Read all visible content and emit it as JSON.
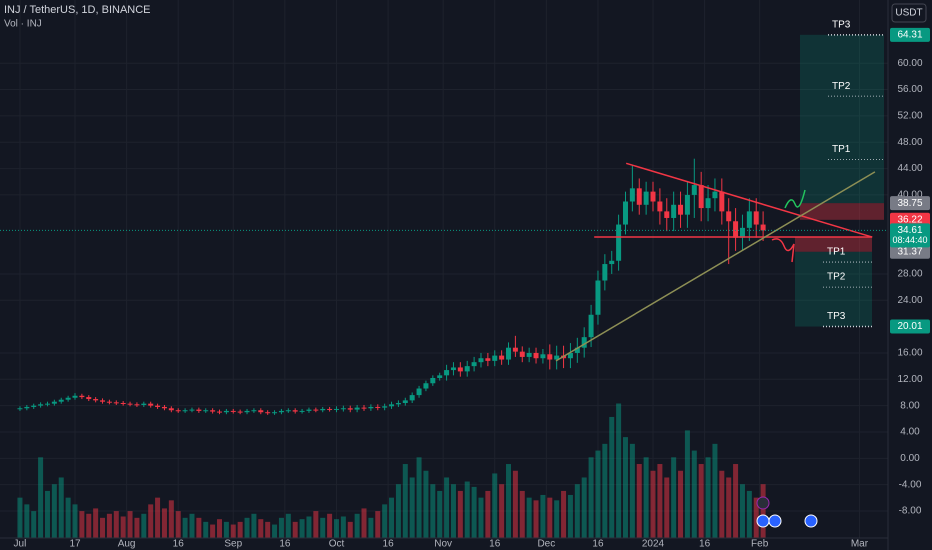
{
  "chart_data": {
    "type": "candlestick",
    "title": "INJ / TetherUS, 1D, BINANCE",
    "subtitle": "Vol · INJ",
    "currency": "USDT",
    "countdown": "08:44:40",
    "up_color": "#089981",
    "down_color": "#f23645",
    "grid": true,
    "xlim": [
      -5.8,
      252.3
    ],
    "ylim": [
      -12.1,
      69.6
    ],
    "volume_ylim": [
      0,
      400
    ],
    "xticks": [
      {
        "value": 0,
        "label": "Jul"
      },
      {
        "value": 16,
        "label": "17"
      },
      {
        "value": 31,
        "label": "Aug"
      },
      {
        "value": 46,
        "label": "16"
      },
      {
        "value": 62,
        "label": "Sep"
      },
      {
        "value": 77,
        "label": "16"
      },
      {
        "value": 92,
        "label": "Oct"
      },
      {
        "value": 107,
        "label": "16"
      },
      {
        "value": 123,
        "label": "Nov"
      },
      {
        "value": 138,
        "label": "16"
      },
      {
        "value": 153,
        "label": "Dec"
      },
      {
        "value": 168,
        "label": "16"
      },
      {
        "value": 184,
        "label": "2024"
      },
      {
        "value": 199,
        "label": "16"
      },
      {
        "value": 215,
        "label": "Feb"
      },
      {
        "value": 244,
        "label": "Mar"
      }
    ],
    "yticks": [
      {
        "value": 60,
        "label": "60.00"
      },
      {
        "value": 56,
        "label": "56.00"
      },
      {
        "value": 52,
        "label": "52.00"
      },
      {
        "value": 48,
        "label": "48.00"
      },
      {
        "value": 44,
        "label": "44.00"
      },
      {
        "value": 40,
        "label": "40.00"
      },
      {
        "value": 28,
        "label": "28.00"
      },
      {
        "value": 24,
        "label": "24.00"
      },
      {
        "value": 16,
        "label": "16.00"
      },
      {
        "value": 12,
        "label": "12.00"
      },
      {
        "value": 8,
        "label": "8.00"
      },
      {
        "value": 4,
        "label": "4.00"
      },
      {
        "value": 0,
        "label": "0.00"
      },
      {
        "value": -4,
        "label": "-4.00"
      },
      {
        "value": -8,
        "label": "-8.00"
      }
    ],
    "x": [
      0,
      2,
      4,
      6,
      8,
      10,
      12,
      14,
      16,
      18,
      20,
      22,
      24,
      26,
      28,
      30,
      32,
      34,
      36,
      38,
      40,
      42,
      44,
      46,
      48,
      50,
      52,
      54,
      56,
      58,
      60,
      62,
      64,
      66,
      68,
      70,
      72,
      74,
      76,
      78,
      80,
      82,
      84,
      86,
      88,
      90,
      92,
      94,
      96,
      98,
      100,
      102,
      104,
      106,
      108,
      110,
      112,
      114,
      116,
      118,
      120,
      122,
      124,
      126,
      128,
      130,
      132,
      134,
      136,
      138,
      140,
      142,
      144,
      146,
      148,
      150,
      152,
      154,
      156,
      158,
      160,
      162,
      164,
      166,
      168,
      170,
      172,
      174,
      176,
      178,
      180,
      182,
      184,
      186,
      188,
      190,
      192,
      194,
      196,
      198,
      200,
      202,
      204,
      206,
      208,
      210,
      212,
      214,
      216
    ],
    "open": [
      7.5,
      7.6,
      7.8,
      8.0,
      8.2,
      8.3,
      8.6,
      8.9,
      9.2,
      9.5,
      9.3,
      9.0,
      8.8,
      8.6,
      8.5,
      8.4,
      8.3,
      8.2,
      8.1,
      8.3,
      8.0,
      7.8,
      7.6,
      7.3,
      7.2,
      7.3,
      7.4,
      7.2,
      7.3,
      7.1,
      7.0,
      7.2,
      7.1,
      7.0,
      7.2,
      7.3,
      7.0,
      6.9,
      7.0,
      7.2,
      7.3,
      7.1,
      7.2,
      7.4,
      7.3,
      7.5,
      7.4,
      7.5,
      7.6,
      7.4,
      7.7,
      7.6,
      7.8,
      7.7,
      7.9,
      8.2,
      8.4,
      8.8,
      9.6,
      10.6,
      11.4,
      12.2,
      12.6,
      13.4,
      13.8,
      13.2,
      14.0,
      14.6,
      15.2,
      14.8,
      15.6,
      15.0,
      16.8,
      16.2,
      15.4,
      16.0,
      15.2,
      15.8,
      15.0,
      15.6,
      15.2,
      16.0,
      16.8,
      18.4,
      21.8,
      27.0,
      29.5,
      30.0,
      35.5,
      39.0,
      41.0,
      38.5,
      40.5,
      39.0,
      37.5,
      36.5,
      38.5,
      37.0,
      40.0,
      41.5,
      38.0,
      39.5,
      40.5,
      37.5,
      36.0,
      33.5,
      35.0,
      37.5,
      35.5
    ],
    "high": [
      7.9,
      8.1,
      8.3,
      8.5,
      8.6,
      8.9,
      9.2,
      9.5,
      9.9,
      9.8,
      9.6,
      9.3,
      9.1,
      8.9,
      8.8,
      8.7,
      8.6,
      8.5,
      8.6,
      8.6,
      8.3,
      8.1,
      7.9,
      7.6,
      7.6,
      7.7,
      7.7,
      7.6,
      7.6,
      7.4,
      7.5,
      7.5,
      7.4,
      7.5,
      7.6,
      7.6,
      7.3,
      7.3,
      7.5,
      7.6,
      7.6,
      7.5,
      7.7,
      7.7,
      7.8,
      7.8,
      7.9,
      8.0,
      8.0,
      8.1,
      8.1,
      8.2,
      8.2,
      8.3,
      8.6,
      8.8,
      9.2,
      10.0,
      11.0,
      11.8,
      12.6,
      13.0,
      14.2,
      14.6,
      14.6,
      14.8,
      15.4,
      16.0,
      16.0,
      16.4,
      16.4,
      17.6,
      18.6,
      17.0,
      16.8,
      16.8,
      16.6,
      17.3,
      17.1,
      17.1,
      17.5,
      18.3,
      19.9,
      23.3,
      28.5,
      31.0,
      31.5,
      37.0,
      40.5,
      44.5,
      42.5,
      42.0,
      42.0,
      41.0,
      39.5,
      40.5,
      40.5,
      42.0,
      45.5,
      43.5,
      41.5,
      42.5,
      42.5,
      39.5,
      38.0,
      37.0,
      39.5,
      39.5,
      37.5
    ],
    "low": [
      7.2,
      7.3,
      7.5,
      7.7,
      7.9,
      8.0,
      8.3,
      8.6,
      8.9,
      9.0,
      8.7,
      8.5,
      8.3,
      8.2,
      8.1,
      8.0,
      7.9,
      7.8,
      7.8,
      7.7,
      7.5,
      7.3,
      7.0,
      6.9,
      6.9,
      7.0,
      6.9,
      6.9,
      6.8,
      6.7,
      6.7,
      6.8,
      6.7,
      6.7,
      6.9,
      6.7,
      6.6,
      6.6,
      6.7,
      6.9,
      6.8,
      6.8,
      6.9,
      7.0,
      7.0,
      7.1,
      7.0,
      7.1,
      7.0,
      7.0,
      7.2,
      7.2,
      7.3,
      7.3,
      7.5,
      7.8,
      8.0,
      8.4,
      9.2,
      10.2,
      11.0,
      11.8,
      11.8,
      12.6,
      12.4,
      12.4,
      13.2,
      13.8,
      14.0,
      14.0,
      14.2,
      14.2,
      15.4,
      14.6,
      14.6,
      14.4,
      14.4,
      13.5,
      13.5,
      13.7,
      13.7,
      14.5,
      15.3,
      16.9,
      20.3,
      25.5,
      28.0,
      28.5,
      34.0,
      37.5,
      37.0,
      37.0,
      37.5,
      35.5,
      34.5,
      34.5,
      35.0,
      35.0,
      36.5,
      36.0,
      36.0,
      37.5,
      35.5,
      29.5,
      31.5,
      31.5,
      33.0,
      33.5,
      33.0
    ],
    "close": [
      7.6,
      7.8,
      8.0,
      8.2,
      8.3,
      8.6,
      8.9,
      9.2,
      9.5,
      9.3,
      9.0,
      8.8,
      8.6,
      8.5,
      8.4,
      8.3,
      8.2,
      8.1,
      8.3,
      8.0,
      7.8,
      7.6,
      7.3,
      7.2,
      7.3,
      7.4,
      7.2,
      7.3,
      7.1,
      7.0,
      7.2,
      7.1,
      7.0,
      7.2,
      7.3,
      7.0,
      6.9,
      7.0,
      7.2,
      7.3,
      7.1,
      7.2,
      7.4,
      7.3,
      7.5,
      7.4,
      7.5,
      7.6,
      7.4,
      7.7,
      7.6,
      7.8,
      7.7,
      7.9,
      8.2,
      8.4,
      8.8,
      9.6,
      10.6,
      11.4,
      12.2,
      12.6,
      13.4,
      13.8,
      13.2,
      14.0,
      14.6,
      15.2,
      14.8,
      15.6,
      15.0,
      16.8,
      16.2,
      15.4,
      16.0,
      15.2,
      15.8,
      15.0,
      15.6,
      15.2,
      16.0,
      16.8,
      18.4,
      21.8,
      27.0,
      29.5,
      30.0,
      35.5,
      39.0,
      41.0,
      38.5,
      40.5,
      39.0,
      37.5,
      36.5,
      38.5,
      37.0,
      40.0,
      41.5,
      38.0,
      39.5,
      40.5,
      37.5,
      36.0,
      33.5,
      35.0,
      37.5,
      35.5,
      34.61
    ],
    "volume": [
      30,
      25,
      20,
      60,
      35,
      40,
      45,
      30,
      25,
      20,
      18,
      22,
      15,
      18,
      20,
      16,
      20,
      15,
      18,
      25,
      30,
      22,
      28,
      20,
      15,
      18,
      15,
      12,
      10,
      14,
      12,
      10,
      12,
      15,
      18,
      14,
      12,
      10,
      15,
      18,
      12,
      14,
      16,
      20,
      15,
      18,
      14,
      16,
      12,
      18,
      22,
      15,
      20,
      25,
      30,
      40,
      55,
      45,
      60,
      50,
      40,
      35,
      45,
      40,
      35,
      42,
      38,
      30,
      35,
      48,
      40,
      55,
      50,
      35,
      30,
      28,
      32,
      30,
      28,
      35,
      32,
      40,
      45,
      60,
      65,
      70,
      90,
      100,
      75,
      70,
      55,
      60,
      50,
      55,
      45,
      60,
      50,
      80,
      65,
      55,
      60,
      70,
      50,
      45,
      55,
      40,
      35,
      30,
      40
    ],
    "long_position": {
      "entry": 38.75,
      "stop": 36.22,
      "targets": [
        {
          "label": "TP1",
          "value": 45.4
        },
        {
          "label": "TP2",
          "value": 55.0
        },
        {
          "label": "TP3",
          "value": 64.31
        }
      ]
    },
    "short_position": {
      "entry": 31.37,
      "stop": 33.57,
      "targets": [
        {
          "label": "TP1",
          "value": 29.8
        },
        {
          "label": "TP2",
          "value": 26.0
        },
        {
          "label": "TP3",
          "value": 20.01
        }
      ]
    },
    "trendlines": [
      {
        "color": "#f23645",
        "points": [
          [
            176.2,
            44.8
          ],
          [
            247.7,
            33.6
          ]
        ]
      },
      {
        "color": "#f23645",
        "points": [
          [
            166.9,
            33.6
          ],
          [
            247.7,
            33.6
          ]
        ]
      },
      {
        "color": "#8d8f55",
        "points": [
          [
            155.8,
            14.8
          ],
          [
            248.5,
            43.5
          ]
        ]
      }
    ]
  }
}
